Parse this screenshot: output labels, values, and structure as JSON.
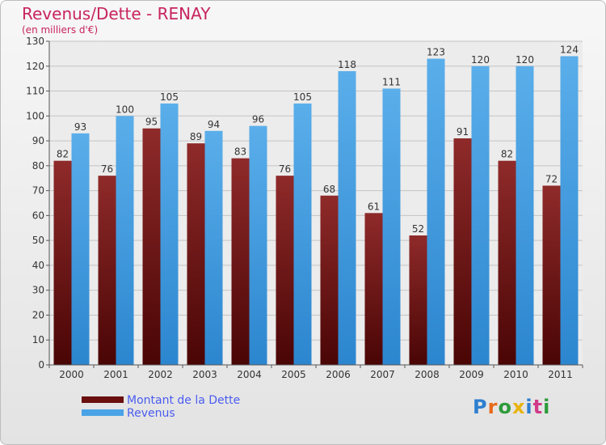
{
  "title": "Revenus/Dette - RENAY",
  "subtitle": "(en milliers d'€)",
  "brand": {
    "text": "Proxiti",
    "colors": [
      "#2e7fd0",
      "#e86a1a",
      "#2e9b3a",
      "#e8b40e",
      "#2e7fd0",
      "#d23a8a",
      "#2e9b3a"
    ]
  },
  "colors": {
    "title": "#c8245e",
    "debt": "#7a1a1a",
    "revenue": "#4aa3e6",
    "legend_text": "#4a5cf0"
  },
  "chart_data": {
    "type": "bar",
    "categories": [
      "2000",
      "2001",
      "2002",
      "2003",
      "2004",
      "2005",
      "2006",
      "2007",
      "2008",
      "2009",
      "2010",
      "2011"
    ],
    "series": [
      {
        "name": "Montant de la Dette",
        "values": [
          82,
          76,
          95,
          89,
          83,
          76,
          68,
          61,
          52,
          91,
          82,
          72
        ]
      },
      {
        "name": "Revenus",
        "values": [
          93,
          100,
          105,
          94,
          96,
          105,
          118,
          111,
          123,
          120,
          120,
          124
        ]
      }
    ],
    "ylim": [
      0,
      130
    ],
    "yticks": [
      0,
      10,
      20,
      30,
      40,
      50,
      60,
      70,
      80,
      90,
      100,
      110,
      120,
      130
    ],
    "grid": true,
    "legend_position": "bottom-left"
  }
}
